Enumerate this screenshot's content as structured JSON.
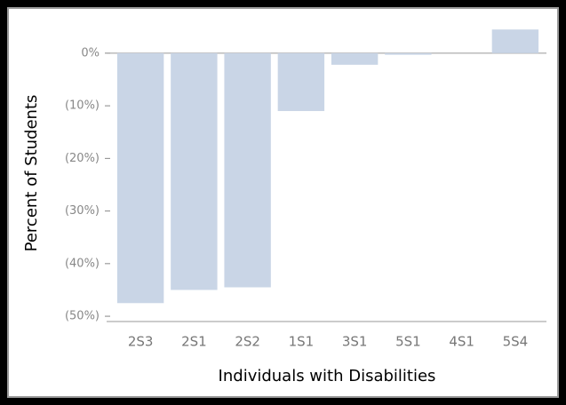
{
  "chart_data": {
    "type": "bar",
    "x_label": "Individuals with Disabilities",
    "y_label": "Percent of Students",
    "categories": [
      "2S3",
      "2S1",
      "2S2",
      "1S1",
      "3S1",
      "5S1",
      "4S1",
      "5S4"
    ],
    "values": [
      -47.5,
      -45,
      -44.5,
      -11,
      -2.2,
      -0.3,
      0,
      4.5
    ],
    "color": "#c9d5e6",
    "ylim": [
      -51,
      7
    ],
    "yticks": [
      {
        "value": 0,
        "label": "0%"
      },
      {
        "value": -10,
        "label": "(10%)"
      },
      {
        "value": -20,
        "label": "(20%)"
      },
      {
        "value": -30,
        "label": "(30%)"
      },
      {
        "value": -40,
        "label": "(40%)"
      },
      {
        "value": -50,
        "label": "(50%)"
      }
    ],
    "grid": false
  }
}
